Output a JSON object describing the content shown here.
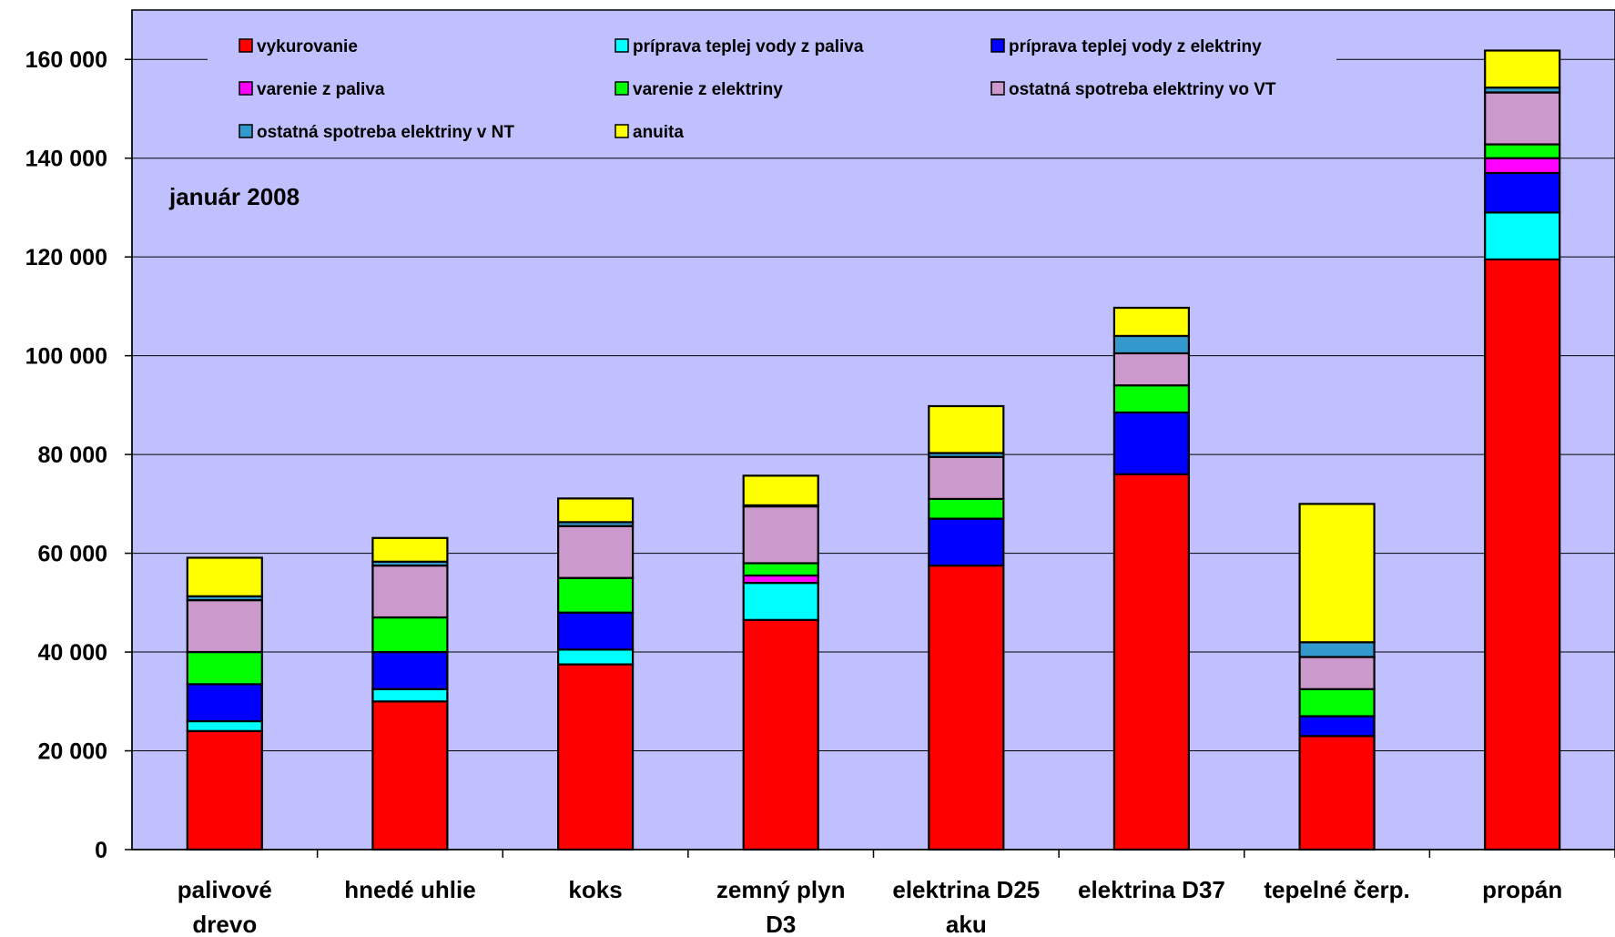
{
  "chart_data": {
    "type": "bar",
    "stacked": true,
    "annotation": "január 2008",
    "ylim": [
      0,
      170000
    ],
    "yticks": [
      0,
      20000,
      40000,
      60000,
      80000,
      100000,
      120000,
      140000,
      160000
    ],
    "ytick_labels": [
      "0",
      "20 000",
      "40 000",
      "60 000",
      "80 000",
      "100 000",
      "120 000",
      "140 000",
      "160 000"
    ],
    "grid": true,
    "plot_background": "#C0C0FF",
    "legend_position": "top",
    "categories": [
      [
        "palivové",
        "drevo"
      ],
      [
        "hnedé uhlie"
      ],
      [
        "koks"
      ],
      [
        "zemný plyn",
        "D3"
      ],
      [
        "elektrina D25",
        "aku"
      ],
      [
        "elektrina D37"
      ],
      [
        "tepelné čerp."
      ],
      [
        "propán"
      ]
    ],
    "series": [
      {
        "name": "vykurovanie",
        "color": "#FF0000",
        "values": [
          24000,
          30000,
          37500,
          46500,
          57500,
          76000,
          23000,
          119500
        ]
      },
      {
        "name": "príprava teplej vody z paliva",
        "color": "#00FFFF",
        "values": [
          2000,
          2500,
          3000,
          7500,
          0,
          0,
          0,
          9500
        ]
      },
      {
        "name": "príprava teplej vody z elektriny",
        "color": "#0000FF",
        "values": [
          7500,
          7500,
          7500,
          0,
          9500,
          12500,
          4000,
          8000
        ]
      },
      {
        "name": "varenie z paliva",
        "color": "#FF00FF",
        "values": [
          0,
          0,
          0,
          1500,
          0,
          0,
          0,
          3000
        ]
      },
      {
        "name": "varenie z elektriny",
        "color": "#00FF00",
        "values": [
          6500,
          7000,
          7000,
          2500,
          4000,
          5500,
          5500,
          2800
        ]
      },
      {
        "name": "ostatná spotreba elektriny vo VT",
        "color": "#CC99CC",
        "values": [
          10500,
          10500,
          10500,
          11500,
          8500,
          6500,
          6500,
          10500
        ]
      },
      {
        "name": "ostatná spotreba elektriny v NT",
        "color": "#3399CC",
        "values": [
          800,
          800,
          800,
          200,
          800,
          3500,
          3000,
          1000
        ]
      },
      {
        "name": "anuita",
        "color": "#FFFF00",
        "values": [
          7800,
          4800,
          4800,
          6000,
          9500,
          5700,
          28000,
          7500
        ]
      }
    ]
  }
}
